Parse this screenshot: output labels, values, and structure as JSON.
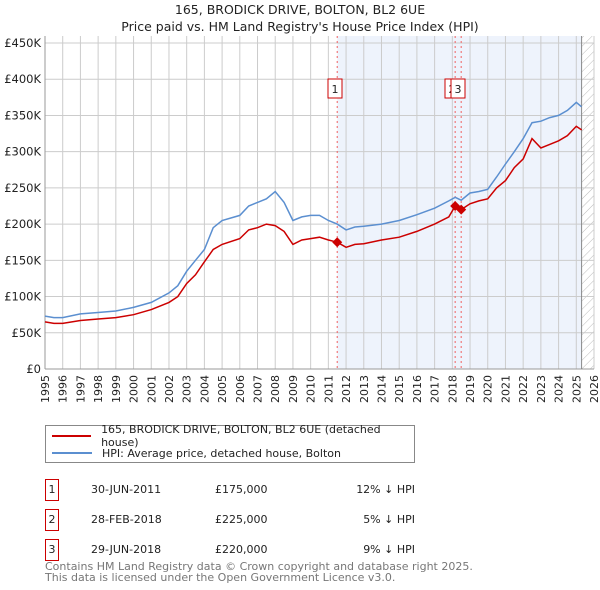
{
  "chart_data": {
    "type": "line",
    "title": "165, BRODICK DRIVE, BOLTON, BL2 6UE",
    "subtitle": "Price paid vs. HM Land Registry's House Price Index (HPI)",
    "xlim": [
      1995,
      2026
    ],
    "ylim": [
      0,
      450000
    ],
    "x_ticks": [
      1995,
      1996,
      1997,
      1998,
      1999,
      2000,
      2001,
      2002,
      2003,
      2004,
      2005,
      2006,
      2007,
      2008,
      2009,
      2010,
      2011,
      2012,
      2013,
      2014,
      2015,
      2016,
      2017,
      2018,
      2019,
      2020,
      2021,
      2022,
      2023,
      2024,
      2025,
      2026
    ],
    "y_ticks": [
      {
        "v": 0,
        "label": "£0"
      },
      {
        "v": 50000,
        "label": "£50K"
      },
      {
        "v": 100000,
        "label": "£100K"
      },
      {
        "v": 150000,
        "label": "£150K"
      },
      {
        "v": 200000,
        "label": "£200K"
      },
      {
        "v": 250000,
        "label": "£250K"
      },
      {
        "v": 300000,
        "label": "£300K"
      },
      {
        "v": 350000,
        "label": "£350K"
      },
      {
        "v": 400000,
        "label": "£400K"
      },
      {
        "v": 450000,
        "label": "£450K"
      }
    ],
    "grid": true,
    "shaded_from": 2011.5,
    "hatched_from": 2025.3,
    "series": [
      {
        "name": "165, BRODICK DRIVE, BOLTON, BL2 6UE (detached house)",
        "color": "#cc0000",
        "x": [
          1995,
          1995.5,
          1996,
          1997,
          1998,
          1999,
          2000,
          2001,
          2002,
          2002.5,
          2003,
          2003.5,
          2004,
          2004.5,
          2005,
          2006,
          2006.5,
          2007,
          2007.5,
          2008,
          2008.5,
          2009,
          2009.5,
          2010,
          2010.5,
          2011,
          2011.5,
          2012,
          2012.5,
          2013,
          2014,
          2015,
          2016,
          2017,
          2017.8,
          2018.16,
          2018.5,
          2019,
          2019.5,
          2020,
          2020.5,
          2021,
          2021.5,
          2022,
          2022.5,
          2023,
          2023.5,
          2024,
          2024.5,
          2025,
          2025.3
        ],
        "y": [
          65000,
          63000,
          63000,
          67000,
          69000,
          71000,
          75000,
          82000,
          92000,
          100000,
          118000,
          130000,
          148000,
          165000,
          172000,
          180000,
          192000,
          195000,
          200000,
          198000,
          190000,
          172000,
          178000,
          180000,
          182000,
          178000,
          175000,
          168000,
          172000,
          173000,
          178000,
          182000,
          190000,
          200000,
          210000,
          225000,
          220000,
          228000,
          232000,
          235000,
          250000,
          260000,
          278000,
          290000,
          318000,
          305000,
          310000,
          315000,
          322000,
          335000,
          330000
        ]
      },
      {
        "name": "HPI: Average price, detached house, Bolton",
        "color": "#5b8fd0",
        "x": [
          1995,
          1995.5,
          1996,
          1997,
          1998,
          1999,
          2000,
          2001,
          2002,
          2002.5,
          2003,
          2003.5,
          2004,
          2004.5,
          2005,
          2006,
          2006.5,
          2007,
          2007.5,
          2008,
          2008.5,
          2009,
          2009.5,
          2010,
          2010.5,
          2011,
          2011.5,
          2012,
          2012.5,
          2013,
          2014,
          2015,
          2016,
          2017,
          2017.8,
          2018.16,
          2018.5,
          2019,
          2019.5,
          2020,
          2020.5,
          2021,
          2021.5,
          2022,
          2022.5,
          2023,
          2023.5,
          2024,
          2024.5,
          2025,
          2025.3
        ],
        "y": [
          73000,
          71000,
          71000,
          76000,
          78000,
          80000,
          85000,
          92000,
          105000,
          115000,
          135000,
          150000,
          165000,
          195000,
          205000,
          212000,
          225000,
          230000,
          235000,
          245000,
          230000,
          205000,
          210000,
          212000,
          212000,
          205000,
          200000,
          192000,
          196000,
          197000,
          200000,
          205000,
          213000,
          222000,
          232000,
          237000,
          233000,
          243000,
          245000,
          248000,
          265000,
          283000,
          300000,
          318000,
          340000,
          342000,
          347000,
          350000,
          357000,
          368000,
          362000
        ]
      }
    ],
    "annotations": [
      {
        "id": "1",
        "x": 2011.5,
        "y": 175000
      },
      {
        "id": "2",
        "x": 2018.16,
        "y": 225000
      },
      {
        "id": "3",
        "x": 2018.5,
        "y": 220000
      }
    ]
  },
  "legend": {
    "items": [
      "165, BRODICK DRIVE, BOLTON, BL2 6UE (detached house)",
      "HPI: Average price, detached house, Bolton"
    ]
  },
  "transactions": [
    {
      "id": "1",
      "date": "30-JUN-2011",
      "price": "£175,000",
      "hpi": "12% ↓ HPI"
    },
    {
      "id": "2",
      "date": "28-FEB-2018",
      "price": "£225,000",
      "hpi": "5% ↓ HPI"
    },
    {
      "id": "3",
      "date": "29-JUN-2018",
      "price": "£220,000",
      "hpi": "9% ↓ HPI"
    }
  ],
  "footer": [
    "Contains HM Land Registry data © Crown copyright and database right 2025.",
    "This data is licensed under the Open Government Licence v3.0."
  ]
}
